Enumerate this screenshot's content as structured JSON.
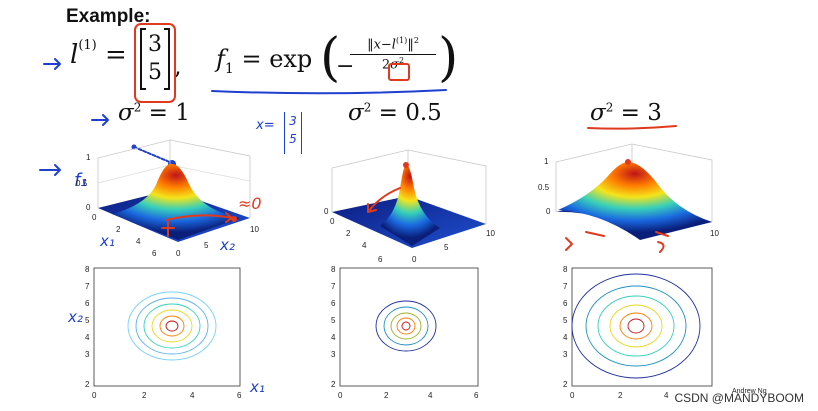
{
  "slide": {
    "title": "Example:",
    "landmark_label": "l",
    "landmark_sup": "(1)",
    "landmark_eq": "=",
    "landmark_vec": [
      "3",
      "5"
    ],
    "comma": ",",
    "f_label": "f",
    "f_sub": "1",
    "f_eq": "= exp",
    "num": "‖x−l",
    "num_sup": "(1)",
    "num_end": "‖",
    "num_sq": "2",
    "den_pre": "2",
    "den_sigma": "σ",
    "den_sq": "2",
    "sigmas": [
      {
        "sigma": "σ",
        "sq": "2",
        "eq": "= 1"
      },
      {
        "sigma": "σ",
        "sq": "2",
        "eq": "= 0.5"
      },
      {
        "sigma": "σ",
        "sq": "2",
        "eq": "= 3"
      }
    ]
  },
  "handwriting": {
    "x_vec_label": "x=",
    "x_vec": [
      "3",
      "5"
    ],
    "f1": "f₁",
    "approx_zero": "≈0",
    "x1": "x₁",
    "x2": "x₂"
  },
  "plots3d": {
    "zticks": [
      "0",
      "0.5",
      "1"
    ],
    "xticks": [
      "0",
      "2",
      "4",
      "6"
    ],
    "yticks": [
      "0",
      "5",
      "10"
    ]
  },
  "contours": {
    "yticks": [
      "2",
      "3",
      "4",
      "5",
      "6",
      "7",
      "8"
    ],
    "xticks": [
      "0",
      "2",
      "4",
      "6"
    ]
  },
  "author": "Andrew Ng",
  "watermark": "CSDN @MANDYBOOM",
  "colors": {
    "blue_ink": "#1f3fcf",
    "red_ink": "#e03a1e"
  }
}
